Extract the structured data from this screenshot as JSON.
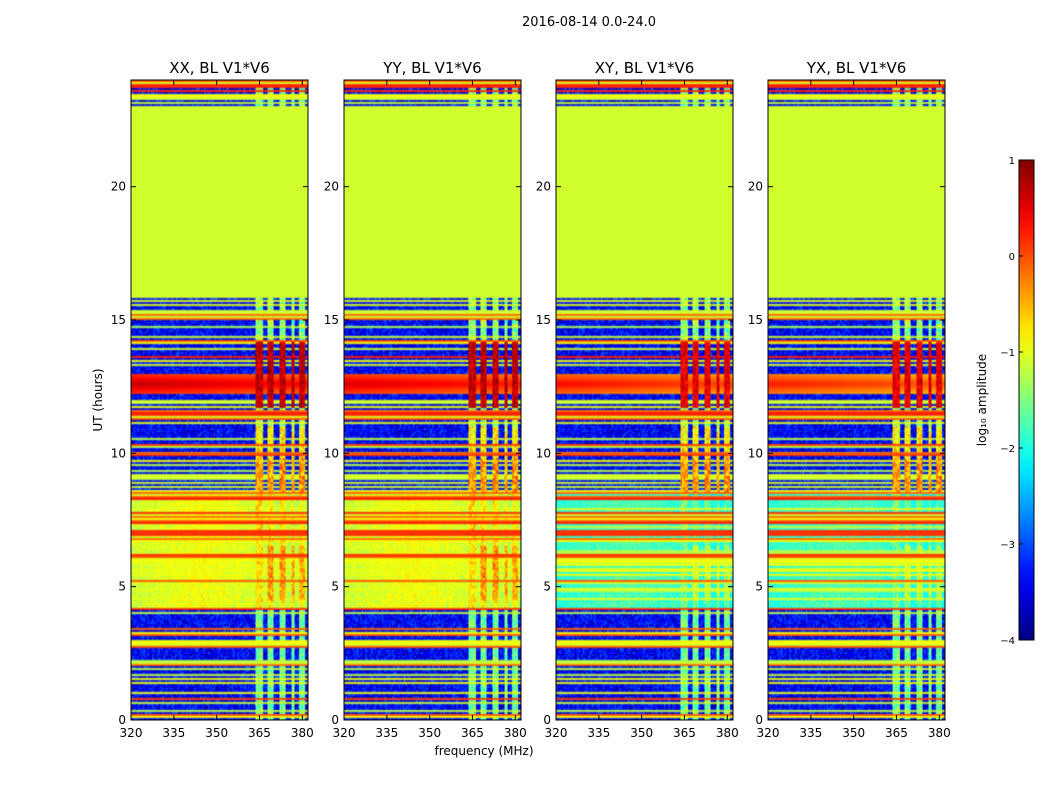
{
  "chart_data": {
    "type": "heatmap",
    "title": "2016-08-14 0.0-24.0",
    "xlabel": "frequency (MHz)",
    "ylabel": "UT (hours)",
    "xlim": [
      320,
      382
    ],
    "ylim": [
      0,
      24
    ],
    "xticks": [
      320,
      335,
      350,
      365,
      380
    ],
    "yticks": [
      0,
      5,
      10,
      15,
      20
    ],
    "panels": [
      {
        "name": "XX",
        "title": "XX, BL V1*V6",
        "blob_value": 0.7,
        "mid_value": -0.9,
        "flare_amp": 0.7
      },
      {
        "name": "YY",
        "title": "YY, BL V1*V6",
        "blob_value": 0.7,
        "mid_value": -0.9,
        "flare_amp": 0.6
      },
      {
        "name": "XY",
        "title": "XY, BL V1*V6",
        "blob_value": 0.5,
        "mid_value": -1.7,
        "flare_amp": 0.4
      },
      {
        "name": "YX",
        "title": "YX, BL V1*V6",
        "blob_value": 0.5,
        "mid_value": -1.7,
        "flare_amp": 0.3
      }
    ],
    "flagged_value": -1.1,
    "flagged_range_hours": [
      15.8,
      23.0
    ],
    "background_value": -3.4,
    "rfi_channel_bands_mhz": [
      [
        363.5,
        366
      ],
      [
        368,
        370
      ],
      [
        372,
        374
      ],
      [
        376,
        377.5
      ],
      [
        379,
        381
      ]
    ],
    "active_ranges_hours": [
      [
        4.1,
        8.5
      ],
      [
        8.5,
        11.0
      ],
      [
        11.0,
        15.8
      ]
    ],
    "colorbar": {
      "label": "log₁₀ amplitude",
      "range": [
        -4,
        1
      ],
      "ticks": [
        "1",
        "0",
        "−1",
        "−2",
        "−3",
        "−4"
      ],
      "colormap": "jet"
    }
  }
}
